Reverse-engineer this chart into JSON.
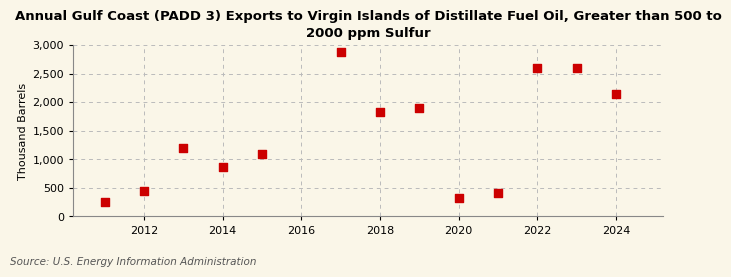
{
  "title": "Annual Gulf Coast (PADD 3) Exports to Virgin Islands of Distillate Fuel Oil, Greater than 500 to\n2000 ppm Sulfur",
  "ylabel": "Thousand Barrels",
  "source": "Source: U.S. Energy Information Administration",
  "years": [
    2011,
    2012,
    2013,
    2014,
    2015,
    2017,
    2018,
    2019,
    2020,
    2021,
    2022,
    2023,
    2024
  ],
  "values": [
    248,
    449,
    1205,
    858,
    1094,
    2876,
    1836,
    1906,
    318,
    408,
    2603,
    2601,
    2148
  ],
  "marker_color": "#cc0000",
  "marker_size": 36,
  "background_color": "#faf6e8",
  "grid_color": "#bbbbbb",
  "xlim": [
    2010.2,
    2025.2
  ],
  "ylim": [
    0,
    3000
  ],
  "yticks": [
    0,
    500,
    1000,
    1500,
    2000,
    2500,
    3000
  ],
  "xticks": [
    2012,
    2014,
    2016,
    2018,
    2020,
    2022,
    2024
  ],
  "title_fontsize": 9.5,
  "tick_fontsize": 8,
  "ylabel_fontsize": 8,
  "source_fontsize": 7.5
}
